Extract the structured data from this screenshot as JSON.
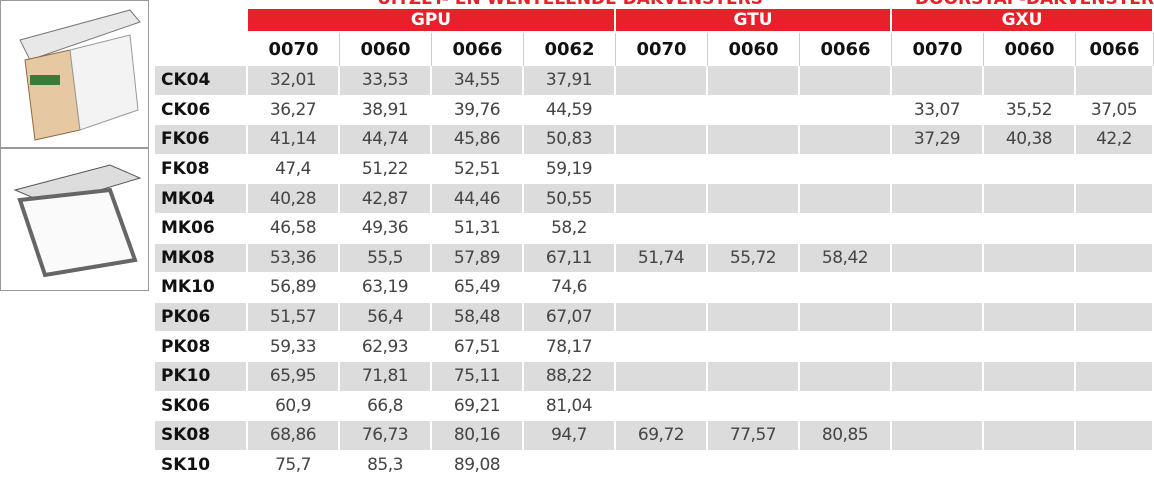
{
  "header": {
    "caption_left": "UITZET- EN WENTELENDE DAKVENSTERS",
    "caption_right": "DOORSTAP-DAKVENSTER",
    "groups": [
      {
        "name": "GPU",
        "codes": [
          "0070",
          "0060",
          "0066",
          "0062"
        ]
      },
      {
        "name": "GTU",
        "codes": [
          "0070",
          "0060",
          "0066"
        ]
      },
      {
        "name": "GXU",
        "codes": [
          "0070",
          "0060",
          "0066"
        ]
      }
    ]
  },
  "table": {
    "rows": [
      {
        "label": "CK04",
        "values": [
          "32,01",
          "33,53",
          "34,55",
          "37,91",
          null,
          null,
          null,
          null,
          null,
          null
        ]
      },
      {
        "label": "CK06",
        "values": [
          "36,27",
          "38,91",
          "39,76",
          "44,59",
          null,
          null,
          null,
          "33,07",
          "35,52",
          "37,05"
        ]
      },
      {
        "label": "FK06",
        "values": [
          "41,14",
          "44,74",
          "45,86",
          "50,83",
          null,
          null,
          null,
          "37,29",
          "40,38",
          "42,2"
        ]
      },
      {
        "label": "FK08",
        "values": [
          "47,4",
          "51,22",
          "52,51",
          "59,19",
          null,
          null,
          null,
          null,
          null,
          null
        ]
      },
      {
        "label": "MK04",
        "values": [
          "40,28",
          "42,87",
          "44,46",
          "50,55",
          null,
          null,
          null,
          null,
          null,
          null
        ]
      },
      {
        "label": "MK06",
        "values": [
          "46,58",
          "49,36",
          "51,31",
          "58,2",
          null,
          null,
          null,
          null,
          null,
          null
        ]
      },
      {
        "label": "MK08",
        "values": [
          "53,36",
          "55,5",
          "57,89",
          "67,11",
          "51,74",
          "55,72",
          "58,42",
          null,
          null,
          null
        ]
      },
      {
        "label": "MK10",
        "values": [
          "56,89",
          "63,19",
          "65,49",
          "74,6",
          null,
          null,
          null,
          null,
          null,
          null
        ]
      },
      {
        "label": "PK06",
        "values": [
          "51,57",
          "56,4",
          "58,48",
          "67,07",
          null,
          null,
          null,
          null,
          null,
          null
        ]
      },
      {
        "label": "PK08",
        "values": [
          "59,33",
          "62,93",
          "67,51",
          "78,17",
          null,
          null,
          null,
          null,
          null,
          null
        ]
      },
      {
        "label": "PK10",
        "values": [
          "65,95",
          "71,81",
          "75,11",
          "88,22",
          null,
          null,
          null,
          null,
          null,
          null
        ]
      },
      {
        "label": "SK06",
        "values": [
          "60,9",
          "66,8",
          "69,21",
          "81,04",
          null,
          null,
          null,
          null,
          null,
          null
        ]
      },
      {
        "label": "SK08",
        "values": [
          "68,86",
          "76,73",
          "80,16",
          "94,7",
          "69,72",
          "77,57",
          "80,85",
          null,
          null,
          null
        ]
      },
      {
        "label": "SK10",
        "values": [
          "75,7",
          "85,3",
          "89,08",
          null,
          null,
          null,
          null,
          null,
          null,
          null
        ]
      }
    ]
  }
}
